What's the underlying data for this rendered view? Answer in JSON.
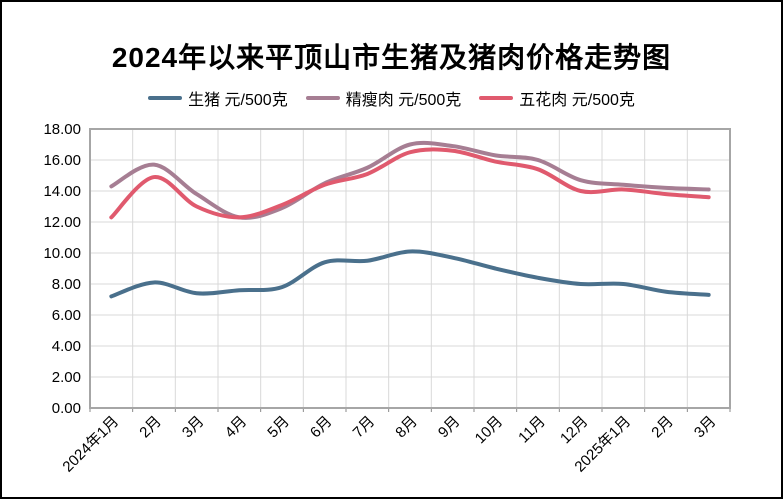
{
  "title": "2024年以来平顶山市生猪及猪肉价格走势图",
  "chart_data": {
    "type": "line",
    "smooth": true,
    "title": "2024年以来平顶山市生猪及猪肉价格走势图",
    "categories": [
      "2024年1月",
      "2月",
      "3月",
      "4月",
      "5月",
      "6月",
      "7月",
      "8月",
      "9月",
      "10月",
      "11月",
      "12月",
      "2025年1月",
      "2月",
      "3月"
    ],
    "series": [
      {
        "name": "生猪 元/500克",
        "color": "#4A708C",
        "values": [
          7.2,
          8.1,
          7.4,
          7.6,
          7.8,
          9.4,
          9.5,
          10.1,
          9.7,
          9.0,
          8.4,
          8.0,
          8.0,
          7.5,
          7.3
        ]
      },
      {
        "name": "精瘦肉 元/500克",
        "color": "#A67E93",
        "values": [
          14.3,
          15.7,
          13.8,
          12.3,
          12.9,
          14.5,
          15.5,
          17.0,
          16.9,
          16.3,
          16.0,
          14.7,
          14.4,
          14.2,
          14.1
        ]
      },
      {
        "name": "五花肉 元/500克",
        "color": "#E05A6E",
        "values": [
          12.3,
          14.9,
          13.0,
          12.3,
          13.1,
          14.4,
          15.1,
          16.5,
          16.6,
          15.9,
          15.4,
          14.0,
          14.1,
          13.8,
          13.6
        ]
      }
    ],
    "ylim": [
      0,
      18
    ],
    "ytick_step": 2,
    "ytick_labels": [
      "0.00",
      "2.00",
      "4.00",
      "6.00",
      "8.00",
      "10.00",
      "12.00",
      "14.00",
      "16.00",
      "18.00"
    ],
    "xlabel": "",
    "ylabel": "",
    "grid": true,
    "legend_position": "top",
    "styles": {
      "grid_color": "#D9D9D9",
      "plot_border_color": "#A6A6A6",
      "tick_color": "#898989",
      "axis_text_color": "#000000"
    }
  }
}
